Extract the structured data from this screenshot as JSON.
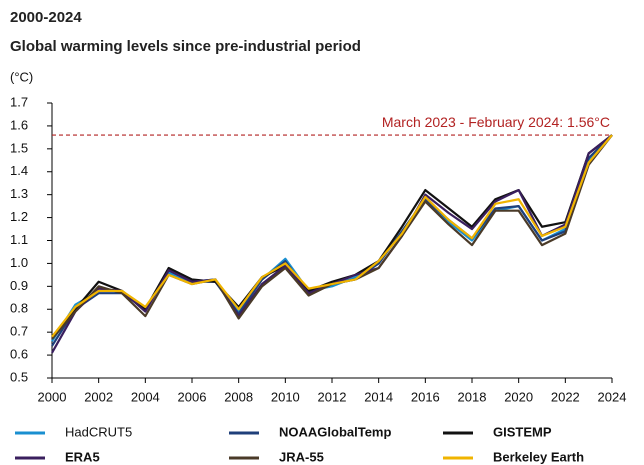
{
  "chart_data": {
    "type": "line",
    "title": "2000-2024",
    "subtitle": "Global warming levels since pre-industrial period",
    "y_label": "(°C)",
    "x": [
      2000,
      2001,
      2002,
      2003,
      2004,
      2005,
      2006,
      2007,
      2008,
      2009,
      2010,
      2011,
      2012,
      2013,
      2014,
      2015,
      2016,
      2017,
      2018,
      2019,
      2020,
      2021,
      2022,
      2023,
      2024
    ],
    "xlim": [
      2000,
      2024
    ],
    "xticks": [
      2000,
      2002,
      2004,
      2006,
      2008,
      2010,
      2012,
      2014,
      2016,
      2018,
      2020,
      2022,
      2024
    ],
    "ylim": [
      0.5,
      1.7
    ],
    "yticks": [
      0.5,
      0.6,
      0.7,
      0.8,
      0.9,
      {
        "value": 1,
        "label": "1.0"
      },
      1.1,
      1.2,
      1.3,
      1.4,
      1.5,
      1.6,
      1.7
    ],
    "reference": {
      "value": 1.56,
      "label": "March 2023 - February 2024: 1.56°C",
      "color": "#b22222"
    },
    "series": [
      {
        "name": "HadCRUT5",
        "color": "#1a8fd0",
        "values": [
          0.66,
          0.82,
          0.88,
          0.88,
          0.8,
          0.96,
          0.92,
          0.93,
          0.79,
          0.93,
          1.02,
          0.88,
          0.9,
          0.94,
          1.0,
          1.14,
          1.28,
          1.18,
          1.1,
          1.23,
          1.25,
          1.1,
          1.15,
          1.45,
          1.56
        ]
      },
      {
        "name": "NOAAGlobalTemp",
        "color": "#1f3f7a",
        "values": [
          0.64,
          0.8,
          0.87,
          0.87,
          0.8,
          0.97,
          0.92,
          0.92,
          0.78,
          0.93,
          1.01,
          0.87,
          0.91,
          0.93,
          1.0,
          1.14,
          1.28,
          1.19,
          1.11,
          1.24,
          1.25,
          1.1,
          1.14,
          1.46,
          1.56
        ]
      },
      {
        "name": "GISTEMP",
        "color": "#111111",
        "values": [
          0.68,
          0.8,
          0.92,
          0.88,
          0.8,
          0.98,
          0.93,
          0.92,
          0.81,
          0.94,
          0.99,
          0.88,
          0.92,
          0.95,
          1.01,
          1.16,
          1.32,
          1.24,
          1.16,
          1.28,
          1.32,
          1.16,
          1.18,
          1.48,
          1.56
        ]
      },
      {
        "name": "ERA5",
        "color": "#3a1f5e",
        "values": [
          0.61,
          0.79,
          0.89,
          0.88,
          0.79,
          0.97,
          0.92,
          0.93,
          0.77,
          0.91,
          0.99,
          0.87,
          0.91,
          0.95,
          0.98,
          1.12,
          1.3,
          1.22,
          1.15,
          1.27,
          1.32,
          1.12,
          1.17,
          1.48,
          1.56
        ]
      },
      {
        "name": "JRA-55",
        "color": "#4a3a28",
        "values": [
          0.67,
          0.79,
          0.9,
          0.87,
          0.77,
          0.95,
          0.91,
          0.93,
          0.76,
          0.9,
          0.98,
          0.86,
          0.91,
          0.93,
          0.98,
          1.12,
          1.27,
          1.17,
          1.08,
          1.23,
          1.23,
          1.08,
          1.13,
          1.43,
          1.56
        ]
      },
      {
        "name": "Berkeley Earth",
        "color": "#f0b400",
        "values": [
          0.68,
          0.81,
          0.88,
          0.88,
          0.81,
          0.95,
          0.91,
          0.93,
          0.8,
          0.94,
          1.0,
          0.89,
          0.91,
          0.93,
          1.01,
          1.13,
          1.29,
          1.19,
          1.11,
          1.26,
          1.28,
          1.12,
          1.16,
          1.44,
          1.56
        ]
      }
    ]
  }
}
